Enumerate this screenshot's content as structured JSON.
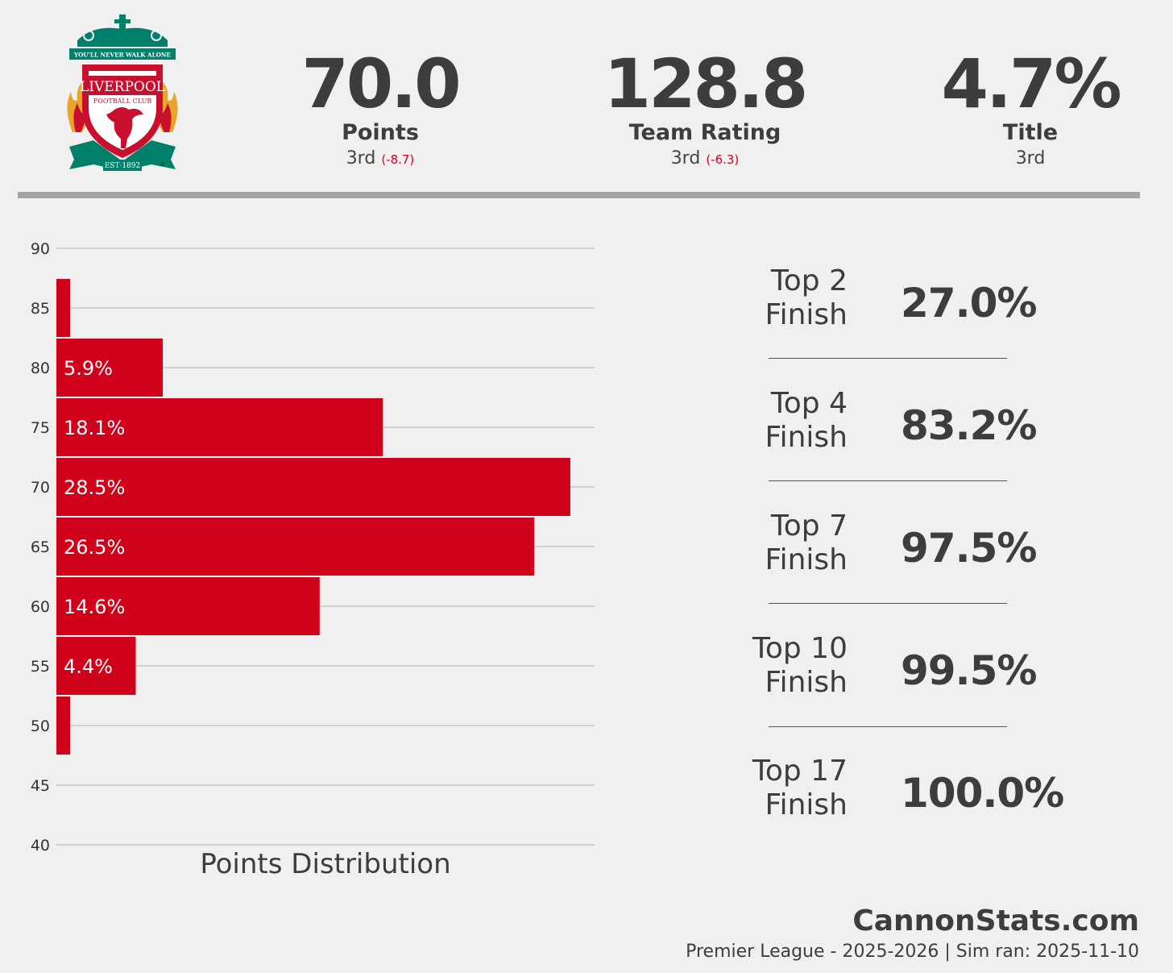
{
  "crest": {
    "motto": "YOU'LL NEVER WALK ALONE",
    "name": "LIVERPOOL",
    "sub": "FOOTBALL CLUB",
    "est": "EST·1892",
    "mark": "®",
    "colors": {
      "green": "#00806b",
      "red": "#c8102e",
      "gold": "#e8a52a"
    }
  },
  "stats": [
    {
      "value": "70.0",
      "label": "Points",
      "rank": "3rd",
      "delta": "(-8.7)"
    },
    {
      "value": "128.8",
      "label": "Team Rating",
      "rank": "3rd",
      "delta": "(-6.3)"
    },
    {
      "value": "4.7%",
      "label": "Title",
      "rank": "3rd",
      "delta": ""
    }
  ],
  "chart_data": {
    "type": "bar",
    "orientation": "horizontal",
    "xlabel": "Points Distribution",
    "ylim": [
      40,
      90
    ],
    "yticks": [
      90,
      85,
      80,
      75,
      70,
      65,
      60,
      55,
      50,
      45,
      40
    ],
    "grid": true,
    "bar_color": "#d0021b",
    "bars": [
      {
        "y": 85,
        "value": 0.5,
        "label": ""
      },
      {
        "y": 80,
        "value": 5.9,
        "label": "5.9%"
      },
      {
        "y": 75,
        "value": 18.1,
        "label": "18.1%"
      },
      {
        "y": 70,
        "value": 28.5,
        "label": "28.5%"
      },
      {
        "y": 65,
        "value": 26.5,
        "label": "26.5%"
      },
      {
        "y": 60,
        "value": 14.6,
        "label": "14.6%"
      },
      {
        "y": 55,
        "value": 4.4,
        "label": "4.4%"
      },
      {
        "y": 50,
        "value": 0.4,
        "label": ""
      }
    ]
  },
  "finishes": [
    {
      "name": "Top 2\nFinish",
      "value": "27.0%"
    },
    {
      "name": "Top 4\nFinish",
      "value": "83.2%"
    },
    {
      "name": "Top 7\nFinish",
      "value": "97.5%"
    },
    {
      "name": "Top 10\nFinish",
      "value": "99.5%"
    },
    {
      "name": "Top 17\nFinish",
      "value": "100.0%"
    }
  ],
  "footer": {
    "brand": "CannonStats.com",
    "info": "Premier League - 2025-2026 | Sim ran: 2025-11-10"
  }
}
